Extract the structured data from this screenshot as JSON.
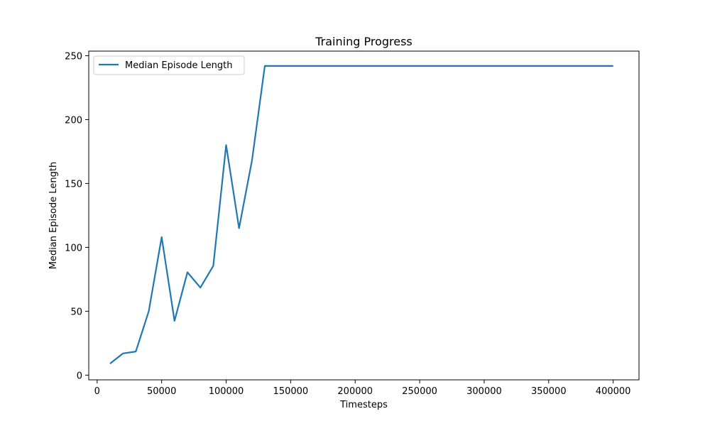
{
  "chart_data": {
    "type": "line",
    "title": "Training Progress",
    "xlabel": "Timesteps",
    "ylabel": "Median Episode Length",
    "xlim": [
      -6500,
      420000
    ],
    "ylim": [
      -3.7,
      253.6
    ],
    "xticks": [
      0,
      50000,
      100000,
      150000,
      200000,
      250000,
      300000,
      350000,
      400000
    ],
    "yticks": [
      0,
      50,
      100,
      150,
      200,
      250
    ],
    "grid": false,
    "legend_position": "top-left",
    "series": [
      {
        "name": "Median Episode Length",
        "color": "#1f77b4",
        "x": [
          10000,
          20000,
          30000,
          40000,
          50000,
          60000,
          70000,
          80000,
          90000,
          100000,
          110000,
          120000,
          130000,
          140000,
          150000,
          160000,
          170000,
          180000,
          190000,
          200000,
          210000,
          220000,
          230000,
          240000,
          250000,
          260000,
          270000,
          280000,
          290000,
          300000,
          310000,
          320000,
          330000,
          340000,
          350000,
          360000,
          370000,
          380000,
          390000,
          400000
        ],
        "y": [
          9,
          17,
          18.5,
          50,
          108,
          42.5,
          80.5,
          68.5,
          85.5,
          180,
          115,
          168,
          242,
          242,
          242,
          242,
          242,
          242,
          242,
          242,
          242,
          242,
          242,
          242,
          242,
          242,
          242,
          242,
          242,
          242,
          242,
          242,
          242,
          242,
          242,
          242,
          242,
          242,
          242,
          242
        ]
      }
    ]
  }
}
